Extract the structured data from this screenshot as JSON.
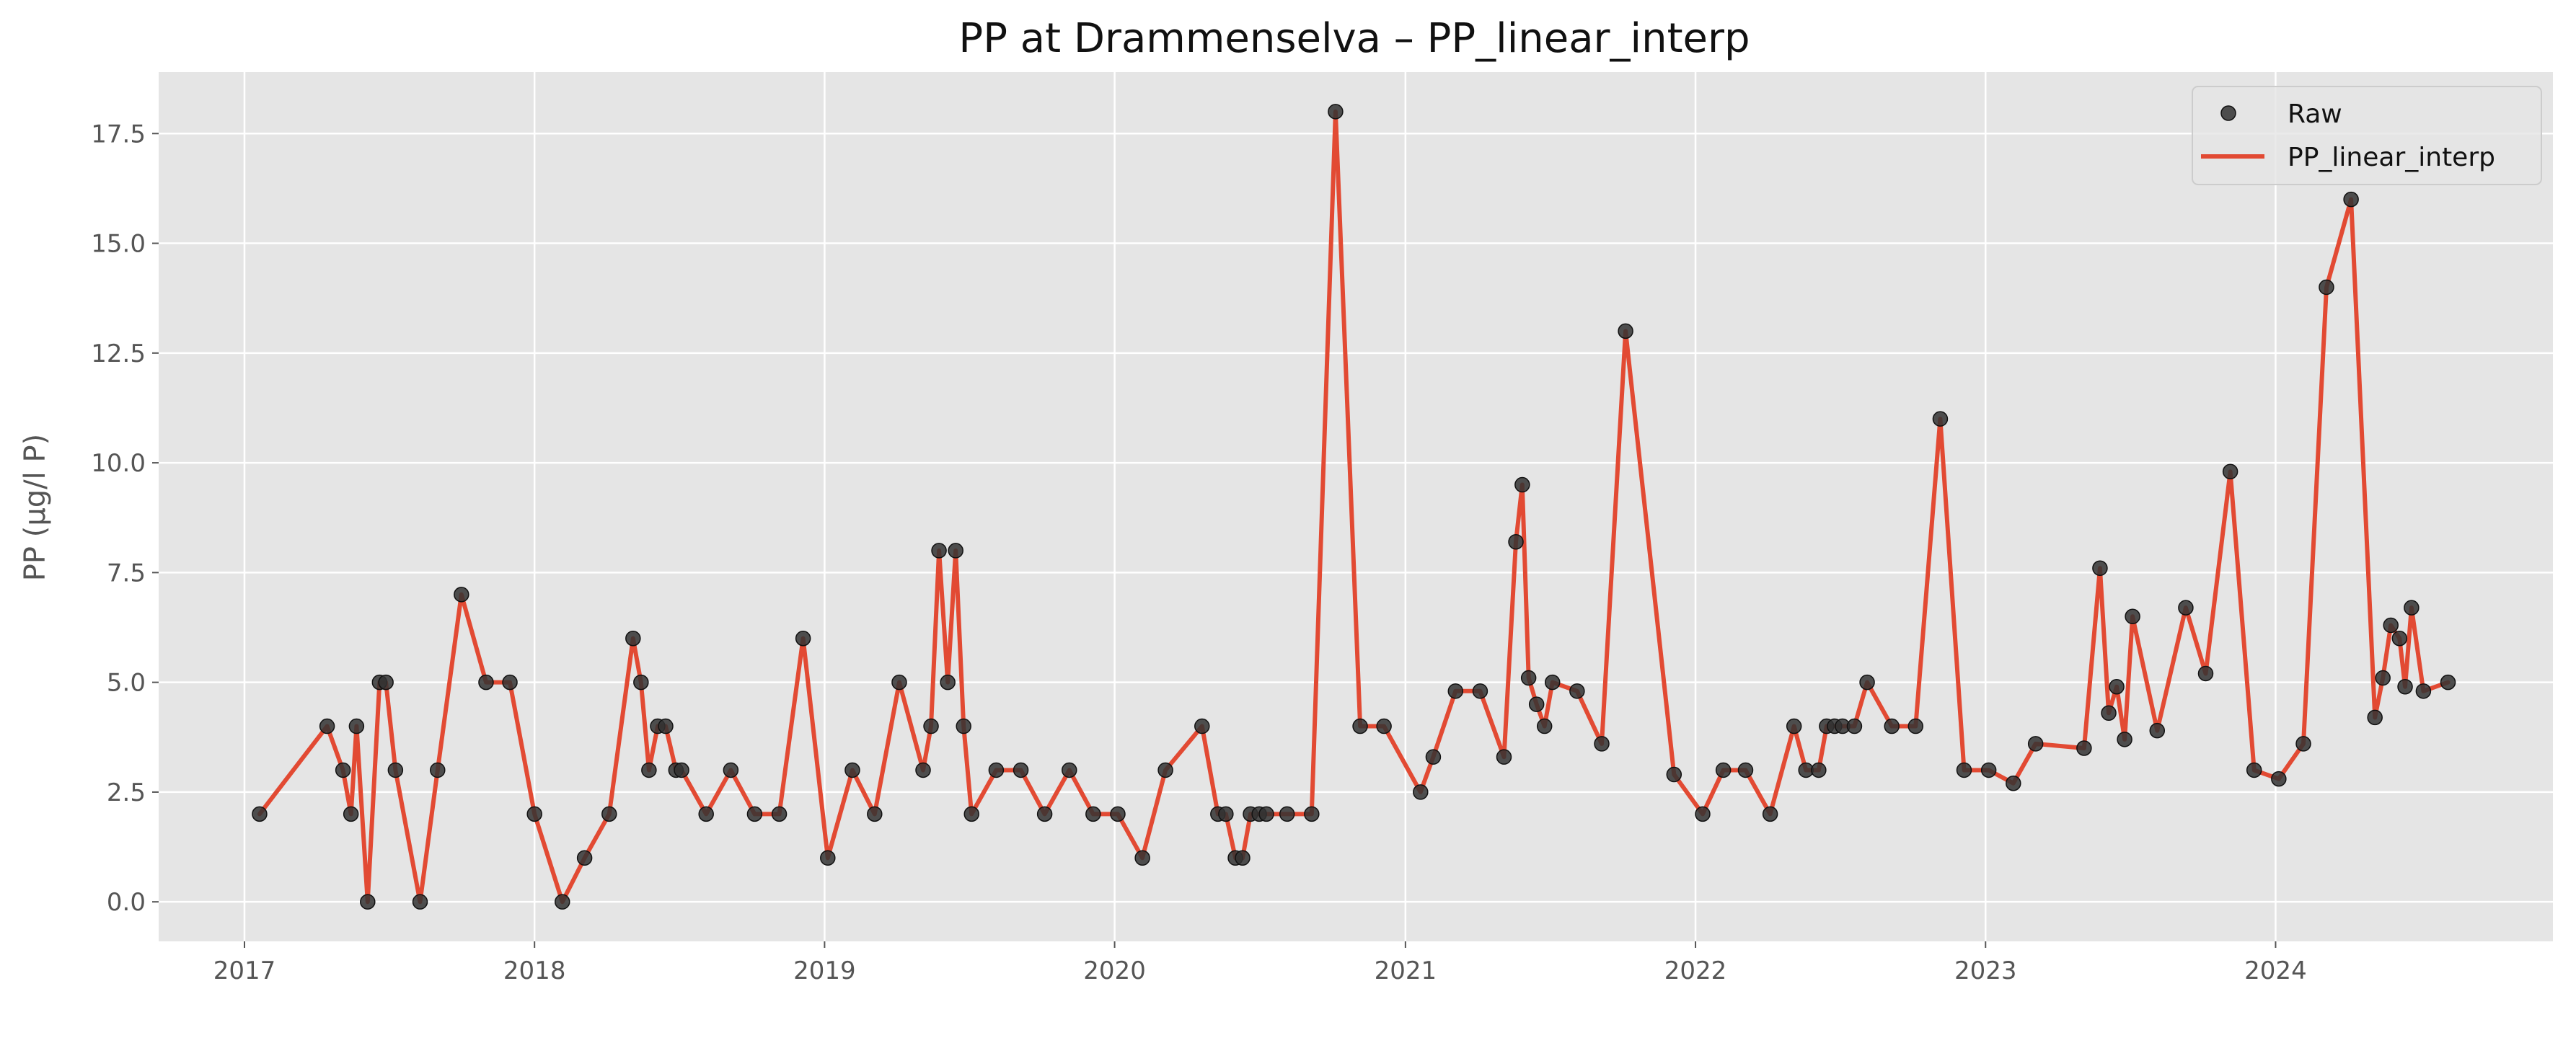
{
  "chart_data": {
    "type": "line",
    "title": "PP at Drammenselva – PP_linear_interp",
    "xlabel": "",
    "ylabel": "PP (µg/l P)",
    "xlim": [
      "2016-09-15",
      "2024-12-15"
    ],
    "ylim": [
      -0.9,
      18.9
    ],
    "x_ticks": [
      "2017",
      "2018",
      "2019",
      "2020",
      "2021",
      "2022",
      "2023",
      "2024"
    ],
    "y_ticks": [
      "0.0",
      "2.5",
      "5.0",
      "7.5",
      "10.0",
      "12.5",
      "15.0",
      "17.5"
    ],
    "grid": true,
    "legend_position": "top-right",
    "series": [
      {
        "name": "Raw",
        "kind": "scatter",
        "color": "#333333",
        "points": [
          [
            "2017-01-20",
            2.0
          ],
          [
            "2017-04-15",
            4.0
          ],
          [
            "2017-05-05",
            3.0
          ],
          [
            "2017-05-15",
            2.0
          ],
          [
            "2017-05-22",
            4.0
          ],
          [
            "2017-06-05",
            0.0
          ],
          [
            "2017-06-20",
            5.0
          ],
          [
            "2017-06-28",
            5.0
          ],
          [
            "2017-07-10",
            3.0
          ],
          [
            "2017-08-10",
            0.0
          ],
          [
            "2017-09-01",
            3.0
          ],
          [
            "2017-10-01",
            7.0
          ],
          [
            "2017-11-01",
            5.0
          ],
          [
            "2017-12-01",
            5.0
          ],
          [
            "2018-01-01",
            2.0
          ],
          [
            "2018-02-05",
            0.0
          ],
          [
            "2018-03-05",
            1.0
          ],
          [
            "2018-04-05",
            2.0
          ],
          [
            "2018-05-05",
            6.0
          ],
          [
            "2018-05-15",
            5.0
          ],
          [
            "2018-05-25",
            3.0
          ],
          [
            "2018-06-05",
            4.0
          ],
          [
            "2018-06-15",
            4.0
          ],
          [
            "2018-06-28",
            3.0
          ],
          [
            "2018-07-05",
            3.0
          ],
          [
            "2018-08-05",
            2.0
          ],
          [
            "2018-09-05",
            3.0
          ],
          [
            "2018-10-05",
            2.0
          ],
          [
            "2018-11-05",
            2.0
          ],
          [
            "2018-12-05",
            6.0
          ],
          [
            "2019-01-05",
            1.0
          ],
          [
            "2019-02-05",
            3.0
          ],
          [
            "2019-03-05",
            2.0
          ],
          [
            "2019-04-05",
            5.0
          ],
          [
            "2019-05-05",
            3.0
          ],
          [
            "2019-05-15",
            4.0
          ],
          [
            "2019-05-25",
            8.0
          ],
          [
            "2019-06-05",
            5.0
          ],
          [
            "2019-06-15",
            8.0
          ],
          [
            "2019-06-25",
            4.0
          ],
          [
            "2019-07-05",
            2.0
          ],
          [
            "2019-08-05",
            3.0
          ],
          [
            "2019-09-05",
            3.0
          ],
          [
            "2019-10-05",
            2.0
          ],
          [
            "2019-11-05",
            3.0
          ],
          [
            "2019-12-05",
            2.0
          ],
          [
            "2020-01-05",
            2.0
          ],
          [
            "2020-02-05",
            1.0
          ],
          [
            "2020-03-05",
            3.0
          ],
          [
            "2020-04-20",
            4.0
          ],
          [
            "2020-05-10",
            2.0
          ],
          [
            "2020-05-20",
            2.0
          ],
          [
            "2020-06-01",
            1.0
          ],
          [
            "2020-06-10",
            1.0
          ],
          [
            "2020-06-20",
            2.0
          ],
          [
            "2020-07-01",
            2.0
          ],
          [
            "2020-07-10",
            2.0
          ],
          [
            "2020-08-05",
            2.0
          ],
          [
            "2020-09-05",
            2.0
          ],
          [
            "2020-10-05",
            18.0
          ],
          [
            "2020-11-05",
            4.0
          ],
          [
            "2020-12-05",
            4.0
          ],
          [
            "2021-01-20",
            2.5
          ],
          [
            "2021-02-05",
            3.3
          ],
          [
            "2021-03-05",
            4.8
          ],
          [
            "2021-04-05",
            4.8
          ],
          [
            "2021-05-05",
            3.3
          ],
          [
            "2021-05-20",
            8.2
          ],
          [
            "2021-05-28",
            9.5
          ],
          [
            "2021-06-05",
            5.1
          ],
          [
            "2021-06-15",
            4.5
          ],
          [
            "2021-06-25",
            4.0
          ],
          [
            "2021-07-05",
            5.0
          ],
          [
            "2021-08-05",
            4.8
          ],
          [
            "2021-09-05",
            3.6
          ],
          [
            "2021-10-05",
            13.0
          ],
          [
            "2021-12-05",
            2.9
          ],
          [
            "2022-01-10",
            2.0
          ],
          [
            "2022-02-05",
            3.0
          ],
          [
            "2022-03-05",
            3.0
          ],
          [
            "2022-04-05",
            2.0
          ],
          [
            "2022-05-05",
            4.0
          ],
          [
            "2022-05-20",
            3.0
          ],
          [
            "2022-06-05",
            3.0
          ],
          [
            "2022-06-15",
            4.0
          ],
          [
            "2022-06-25",
            4.0
          ],
          [
            "2022-07-05",
            4.0
          ],
          [
            "2022-07-20",
            4.0
          ],
          [
            "2022-08-05",
            5.0
          ],
          [
            "2022-09-05",
            4.0
          ],
          [
            "2022-10-05",
            4.0
          ],
          [
            "2022-11-05",
            11.0
          ],
          [
            "2022-12-05",
            3.0
          ],
          [
            "2023-01-05",
            3.0
          ],
          [
            "2023-02-05",
            2.7
          ],
          [
            "2023-03-05",
            3.6
          ],
          [
            "2023-05-05",
            3.5
          ],
          [
            "2023-05-25",
            7.6
          ],
          [
            "2023-06-05",
            4.3
          ],
          [
            "2023-06-15",
            4.9
          ],
          [
            "2023-06-25",
            3.7
          ],
          [
            "2023-07-05",
            6.5
          ],
          [
            "2023-08-05",
            3.9
          ],
          [
            "2023-09-10",
            6.7
          ],
          [
            "2023-10-05",
            5.2
          ],
          [
            "2023-11-05",
            9.8
          ],
          [
            "2023-12-05",
            3.0
          ],
          [
            "2024-01-05",
            2.8
          ],
          [
            "2024-02-05",
            3.6
          ],
          [
            "2024-03-05",
            14.0
          ],
          [
            "2024-04-05",
            16.0
          ],
          [
            "2024-05-05",
            4.2
          ],
          [
            "2024-05-15",
            5.1
          ],
          [
            "2024-05-25",
            6.3
          ],
          [
            "2024-06-05",
            6.0
          ],
          [
            "2024-06-12",
            4.9
          ],
          [
            "2024-06-20",
            6.7
          ],
          [
            "2024-07-05",
            4.8
          ],
          [
            "2024-08-05",
            5.0
          ]
        ]
      },
      {
        "name": "PP_linear_interp",
        "kind": "line",
        "color": "#E24A33"
      }
    ]
  }
}
